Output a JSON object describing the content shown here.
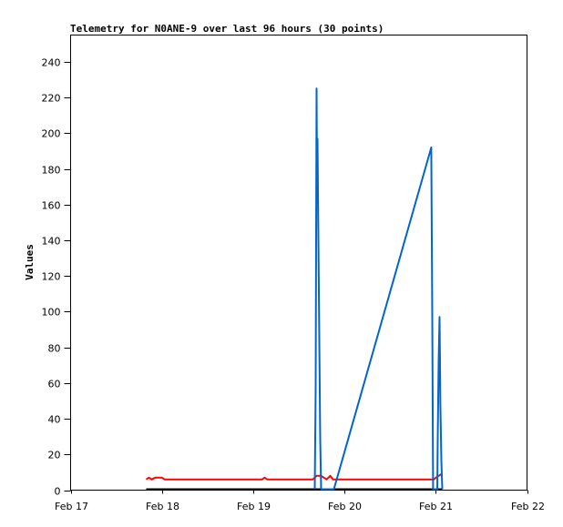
{
  "chart_data": {
    "type": "line",
    "title": "Telemetry for N0ANE-9 over last 96 hours (30 points)",
    "xlabel": "",
    "ylabel": "Values",
    "xlim": [
      "02-17 00:00",
      "02-22 00:00"
    ],
    "ylim": [
      0,
      255
    ],
    "x_ticks": [
      {
        "label": "Feb 17",
        "at": "02-17 00:00"
      },
      {
        "label": "Feb 18",
        "at": "02-18 00:00"
      },
      {
        "label": "Feb 19",
        "at": "02-19 00:00"
      },
      {
        "label": "Feb 20",
        "at": "02-20 00:00"
      },
      {
        "label": "Feb 21",
        "at": "02-21 00:00"
      },
      {
        "label": "Feb 22",
        "at": "02-22 00:00"
      }
    ],
    "y_ticks": [
      0,
      20,
      40,
      60,
      80,
      100,
      120,
      140,
      160,
      180,
      200,
      220,
      240
    ],
    "grid": false,
    "series": [
      {
        "color": "#000000",
        "points": [
          [
            "02-17 19:53",
            0
          ],
          [
            "02-21 01:43",
            0
          ]
        ]
      },
      {
        "color": "#ff0000",
        "points": [
          [
            "02-17 19:53",
            6
          ],
          [
            "02-17 20:36",
            7
          ],
          [
            "02-17 21:19",
            6
          ],
          [
            "02-17 22:17",
            7
          ],
          [
            "02-18 00:00",
            7
          ],
          [
            "02-18 00:43",
            6
          ],
          [
            "02-19 02:18",
            6
          ],
          [
            "02-19 03:01",
            7
          ],
          [
            "02-19 03:44",
            6
          ],
          [
            "02-19 15:42",
            6
          ],
          [
            "02-19 16:40",
            8
          ],
          [
            "02-19 17:52",
            8
          ],
          [
            "02-19 18:35",
            7
          ],
          [
            "02-19 19:18",
            6
          ],
          [
            "02-19 20:16",
            8
          ],
          [
            "02-19 20:59",
            6
          ],
          [
            "02-20 23:33",
            6
          ],
          [
            "02-21 00:02",
            7
          ],
          [
            "02-21 00:46",
            8
          ],
          [
            "02-21 01:29",
            9
          ]
        ]
      },
      {
        "color": "#0066cc",
        "points": [
          [
            "02-19 16:11",
            0
          ],
          [
            "02-19 16:26",
            56
          ],
          [
            "02-19 16:40",
            225
          ],
          [
            "02-19 16:47",
            168
          ],
          [
            "02-19 16:55",
            197
          ],
          [
            "02-19 17:09",
            140
          ],
          [
            "02-19 17:23",
            84
          ],
          [
            "02-19 17:38",
            28
          ],
          [
            "02-19 17:52",
            0
          ],
          [
            "02-19 21:13",
            0
          ],
          [
            "02-20 22:50",
            192
          ],
          [
            "02-20 23:05",
            97
          ],
          [
            "02-20 23:19",
            0
          ],
          [
            "02-21 00:24",
            0
          ],
          [
            "02-21 00:31",
            29
          ],
          [
            "02-21 00:46",
            72
          ],
          [
            "02-21 01:00",
            97
          ],
          [
            "02-21 01:14",
            48
          ],
          [
            "02-21 01:29",
            16
          ],
          [
            "02-21 01:43",
            0
          ]
        ]
      }
    ]
  }
}
